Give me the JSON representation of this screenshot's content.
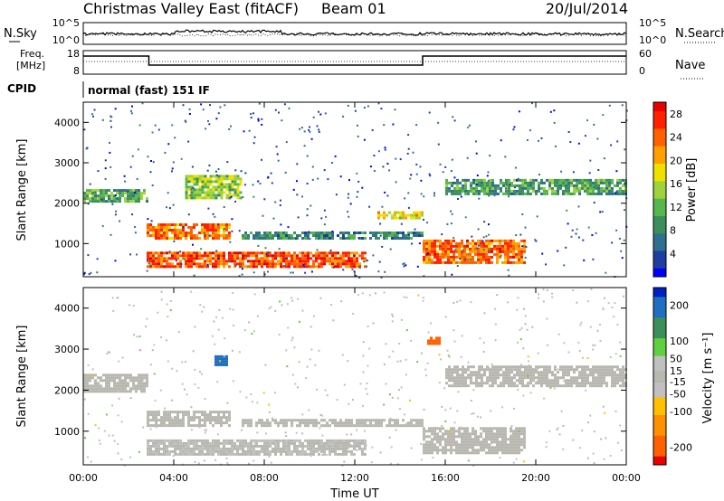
{
  "header": {
    "title": "Christmas Valley East (fitACF)",
    "beam": "Beam 01",
    "date": "20/Jul/2014"
  },
  "panels": {
    "nsky": {
      "label": "N.Sky",
      "y_ticks": [
        "10^5",
        "10^0"
      ]
    },
    "nsearch": {
      "label": "N.Search",
      "y_ticks": [
        "10^5",
        "10^0"
      ]
    },
    "freq": {
      "label_line1": "Freq.",
      "label_line2": "[MHz]",
      "y_ticks": [
        "18",
        "8"
      ]
    },
    "nave": {
      "label": "Nave",
      "y_ticks": [
        "60",
        "0"
      ]
    },
    "cpid": {
      "label": "CPID",
      "mode_text": "normal (fast) 151 IF"
    }
  },
  "colors": {
    "power_scale": [
      "#0000ff",
      "#1e3fa0",
      "#2f6f8f",
      "#3c8f5a",
      "#56b84c",
      "#a0d23c",
      "#f0e000",
      "#ffa000",
      "#ff6000",
      "#ff2000",
      "#e80000"
    ],
    "velocity_scale": [
      "#e80000",
      "#ff6000",
      "#ff9000",
      "#ffc000",
      "#c0c0c0",
      "#c0c0c0",
      "#60d040",
      "#3c8f5a",
      "#1e6fc0",
      "#0020c0"
    ],
    "ground_scatter": "#b8b8b0"
  },
  "chart_data": [
    {
      "type": "heatmap",
      "name": "power",
      "xlabel": "",
      "ylabel": "Slant Range [km]",
      "x_ticks": [
        "00:00",
        "04:00",
        "08:00",
        "12:00",
        "16:00",
        "20:00",
        "00:00"
      ],
      "xlim_hours": [
        0,
        24
      ],
      "y_ticks": [
        1000,
        2000,
        3000,
        4000
      ],
      "ylim": [
        180,
        4500
      ],
      "colorbar": {
        "label": "Power [dB]",
        "ticks": [
          4,
          8,
          12,
          16,
          20,
          24,
          28
        ],
        "range": [
          0,
          30
        ]
      },
      "bands": [
        {
          "t0": 0.0,
          "t1": 2.8,
          "r0": 2050,
          "r1": 2350,
          "level": 11
        },
        {
          "t0": 2.8,
          "t1": 6.5,
          "r0": 1150,
          "r1": 1500,
          "level": 23
        },
        {
          "t0": 2.8,
          "t1": 12.5,
          "r0": 450,
          "r1": 800,
          "level": 25
        },
        {
          "t0": 4.5,
          "t1": 7.0,
          "r0": 2100,
          "r1": 2700,
          "level": 14
        },
        {
          "t0": 7.0,
          "t1": 15.0,
          "r0": 1150,
          "r1": 1300,
          "level": 8
        },
        {
          "t0": 13.0,
          "t1": 15.0,
          "r0": 1600,
          "r1": 1800,
          "level": 18
        },
        {
          "t0": 15.0,
          "t1": 19.5,
          "r0": 500,
          "r1": 1100,
          "level": 24
        },
        {
          "t0": 16.0,
          "t1": 24.0,
          "r0": 2200,
          "r1": 2600,
          "level": 10
        }
      ]
    },
    {
      "type": "heatmap",
      "name": "velocity",
      "xlabel": "Time UT",
      "ylabel": "Slant Range [km]",
      "x_ticks": [
        "00:00",
        "04:00",
        "08:00",
        "12:00",
        "16:00",
        "20:00",
        "00:00"
      ],
      "xlim_hours": [
        0,
        24
      ],
      "y_ticks": [
        1000,
        2000,
        3000,
        4000
      ],
      "ylim": [
        180,
        4500
      ],
      "colorbar": {
        "label": "Velocity [m s⁻¹]",
        "ticks": [
          200,
          100,
          50,
          15,
          -15,
          -50,
          -100,
          -200
        ],
        "range": [
          -250,
          250
        ]
      },
      "bands": [
        {
          "t0": 0.0,
          "t1": 2.8,
          "r0": 1950,
          "r1": 2400,
          "level": 0
        },
        {
          "t0": 2.8,
          "t1": 6.5,
          "r0": 1150,
          "r1": 1500,
          "level": 0
        },
        {
          "t0": 2.8,
          "t1": 12.5,
          "r0": 450,
          "r1": 800,
          "level": -10
        },
        {
          "t0": 7.0,
          "t1": 15.0,
          "r0": 1150,
          "r1": 1300,
          "level": 0
        },
        {
          "t0": 15.0,
          "t1": 19.5,
          "r0": 500,
          "r1": 1100,
          "level": 0
        },
        {
          "t0": 16.0,
          "t1": 24.0,
          "r0": 2100,
          "r1": 2600,
          "level": 0
        },
        {
          "t0": 5.8,
          "t1": 6.4,
          "r0": 2650,
          "r1": 2850,
          "level": 200
        },
        {
          "t0": 15.2,
          "t1": 15.7,
          "r0": 3150,
          "r1": 3300,
          "level": -200
        }
      ]
    }
  ]
}
